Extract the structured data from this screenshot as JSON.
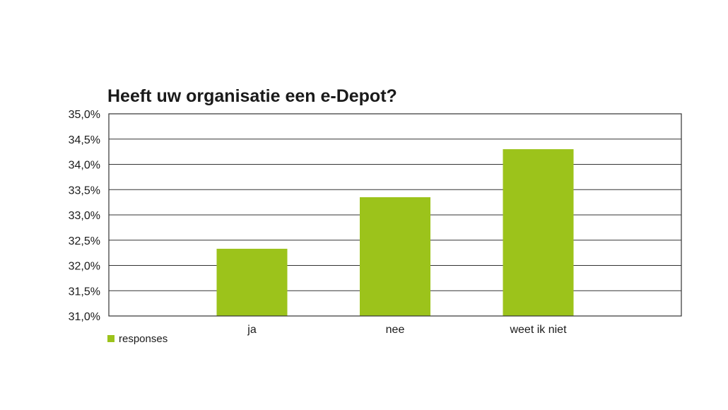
{
  "chart_data": {
    "type": "bar",
    "title": "Heeft uw organisatie een e-Depot?",
    "categories": [
      "ja",
      "nee",
      "weet ik niet"
    ],
    "series": [
      {
        "name": "responses",
        "values": [
          32.33,
          33.35,
          34.3
        ],
        "color": "#9cc31b"
      }
    ],
    "ylim": [
      31.0,
      35.0
    ],
    "yticks": [
      31.0,
      31.5,
      32.0,
      32.5,
      33.0,
      33.5,
      34.0,
      34.5,
      35.0
    ],
    "ytick_labels": [
      "31,0%",
      "31,5%",
      "32,0%",
      "32,5%",
      "33,0%",
      "33,5%",
      "34,0%",
      "34,5%",
      "35,0%"
    ],
    "grid": true,
    "legend_position": "bottom-left"
  }
}
